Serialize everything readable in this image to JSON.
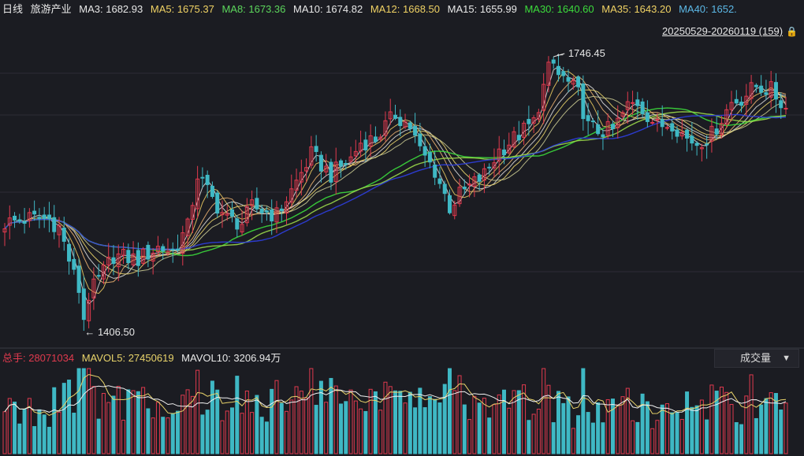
{
  "header": {
    "period": "日线",
    "name": "旅游产业",
    "ma": [
      {
        "label": "MA3: 1682.93",
        "color": "#e8e8e8"
      },
      {
        "label": "MA5: 1675.37",
        "color": "#f0d264"
      },
      {
        "label": "MA8: 1673.36",
        "color": "#5cd65c"
      },
      {
        "label": "MA10: 1674.82",
        "color": "#e8e8e8"
      },
      {
        "label": "MA12: 1668.50",
        "color": "#f0d264"
      },
      {
        "label": "MA15: 1655.99",
        "color": "#e8e8e8"
      },
      {
        "label": "MA30: 1640.60",
        "color": "#3cdc3c"
      },
      {
        "label": "MA35: 1643.20",
        "color": "#f0d264"
      },
      {
        "label": "MA40: 1652.",
        "color": "#5cb8e6"
      }
    ]
  },
  "range": {
    "label": "20250529-20260119 (159)",
    "lock_icon": "🔒"
  },
  "annotations": {
    "high_label": "1746.45",
    "low_label": "1406.50"
  },
  "volume_header": {
    "total": "总手: 28071034",
    "mavol5": "MAVOL5: 27450619",
    "mavol10": "MAVOL10: 3206.94万"
  },
  "volume_dropdown": {
    "label": "成交量",
    "chevron": "▼"
  },
  "colors": {
    "up": "#e03a4e",
    "down": "#3fb8c4",
    "bg": "#1b1c22",
    "grid": "#2c2d35"
  },
  "chart_data": {
    "type": "candlestick",
    "title": "旅游产业 日线",
    "date_range": [
      "20250529",
      "20260119"
    ],
    "bar_count": 159,
    "price_range": [
      1380,
      1780
    ],
    "high": {
      "value": 1746.45,
      "bar_index": 111
    },
    "low": {
      "value": 1406.5,
      "bar_index": 16
    },
    "close_anchors": [
      [
        0,
        1540
      ],
      [
        5,
        1546
      ],
      [
        9,
        1545
      ],
      [
        11,
        1535
      ],
      [
        14,
        1475
      ],
      [
        16,
        1440
      ],
      [
        18,
        1460
      ],
      [
        22,
        1500
      ],
      [
        27,
        1495
      ],
      [
        31,
        1510
      ],
      [
        34,
        1505
      ],
      [
        37,
        1535
      ],
      [
        39,
        1600
      ],
      [
        42,
        1570
      ],
      [
        45,
        1545
      ],
      [
        48,
        1540
      ],
      [
        50,
        1560
      ],
      [
        55,
        1550
      ],
      [
        58,
        1580
      ],
      [
        62,
        1625
      ],
      [
        66,
        1600
      ],
      [
        70,
        1620
      ],
      [
        72,
        1640
      ],
      [
        75,
        1645
      ],
      [
        79,
        1675
      ],
      [
        82,
        1660
      ],
      [
        84,
        1630
      ],
      [
        87,
        1605
      ],
      [
        88,
        1590
      ],
      [
        90,
        1560
      ],
      [
        92,
        1575
      ],
      [
        94,
        1585
      ],
      [
        97,
        1600
      ],
      [
        100,
        1630
      ],
      [
        104,
        1650
      ],
      [
        107,
        1665
      ],
      [
        110,
        1730
      ],
      [
        113,
        1720
      ],
      [
        116,
        1700
      ],
      [
        118,
        1660
      ],
      [
        120,
        1655
      ],
      [
        123,
        1655
      ],
      [
        126,
        1685
      ],
      [
        128,
        1690
      ],
      [
        130,
        1675
      ],
      [
        132,
        1660
      ],
      [
        135,
        1665
      ],
      [
        138,
        1645
      ],
      [
        140,
        1640
      ],
      [
        143,
        1650
      ],
      [
        145,
        1670
      ],
      [
        147,
        1690
      ],
      [
        149,
        1695
      ],
      [
        152,
        1710
      ],
      [
        155,
        1705
      ],
      [
        157,
        1690
      ],
      [
        158,
        1682
      ]
    ],
    "ma_lines": [
      "MA3",
      "MA5",
      "MA8",
      "MA10",
      "MA12",
      "MA15",
      "MA30",
      "MA35",
      "MA40"
    ],
    "volume_panel": {
      "series": [
        "volume",
        "MAVOL5",
        "MAVOL10"
      ]
    }
  }
}
